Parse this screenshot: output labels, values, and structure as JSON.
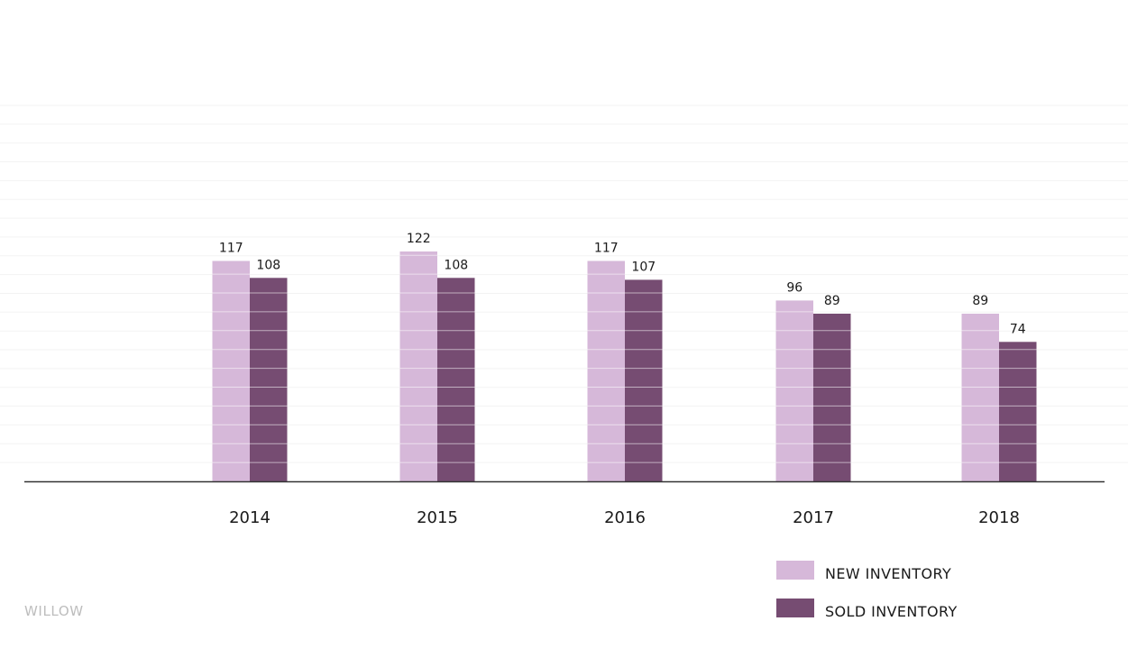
{
  "chart_data": {
    "type": "bar",
    "categories": [
      "2014",
      "2015",
      "2016",
      "2017",
      "2018"
    ],
    "series": [
      {
        "name": "NEW INVENTORY",
        "values": [
          117,
          122,
          117,
          96,
          89
        ],
        "color": "#d6b8d9"
      },
      {
        "name": "SOLD INVENTORY",
        "values": [
          108,
          108,
          107,
          89,
          74
        ],
        "color": "#764c72"
      }
    ],
    "title": "",
    "xlabel": "",
    "ylabel": "",
    "ylim": [
      0,
      200
    ],
    "grid": true,
    "legend_position": "bottom-right",
    "data_labels": true
  },
  "brand": "WILLOW",
  "colors": {
    "axis": "#333333",
    "grid": "#f3f3f3",
    "bar_divider": "#ffffff",
    "brand_text": "#bdbdbd"
  }
}
